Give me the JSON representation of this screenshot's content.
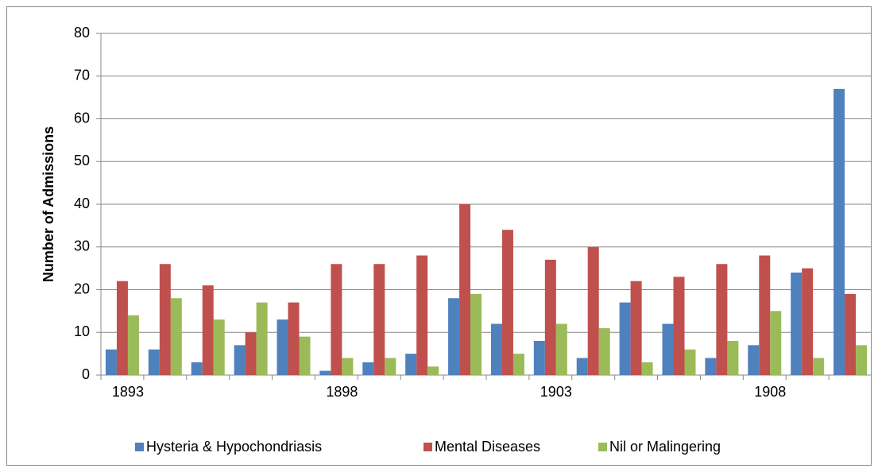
{
  "chart_data": {
    "type": "bar",
    "ylabel": "Number of Admissions",
    "categories": [
      "1893",
      null,
      null,
      null,
      null,
      "1898",
      null,
      null,
      null,
      null,
      "1903",
      null,
      null,
      null,
      null,
      "1908",
      null,
      null
    ],
    "series": [
      {
        "name": "Hysteria & Hypochondriasis",
        "color": "#4f81bd",
        "values": [
          6,
          6,
          3,
          7,
          13,
          1,
          3,
          5,
          18,
          12,
          8,
          4,
          17,
          12,
          4,
          7,
          24,
          67
        ]
      },
      {
        "name": "Mental Diseases",
        "color": "#c0504d",
        "values": [
          22,
          26,
          21,
          10,
          17,
          26,
          26,
          28,
          40,
          34,
          27,
          30,
          22,
          23,
          26,
          28,
          25,
          19
        ]
      },
      {
        "name": "Nil or Malingering",
        "color": "#9bbb59",
        "values": [
          14,
          18,
          13,
          17,
          9,
          4,
          4,
          2,
          19,
          5,
          12,
          11,
          3,
          6,
          8,
          15,
          4,
          7
        ]
      }
    ],
    "ylim": [
      0,
      80
    ],
    "yticks": [
      0,
      10,
      20,
      30,
      40,
      50,
      60,
      70,
      80
    ],
    "grid": true,
    "legend": "bottom"
  }
}
